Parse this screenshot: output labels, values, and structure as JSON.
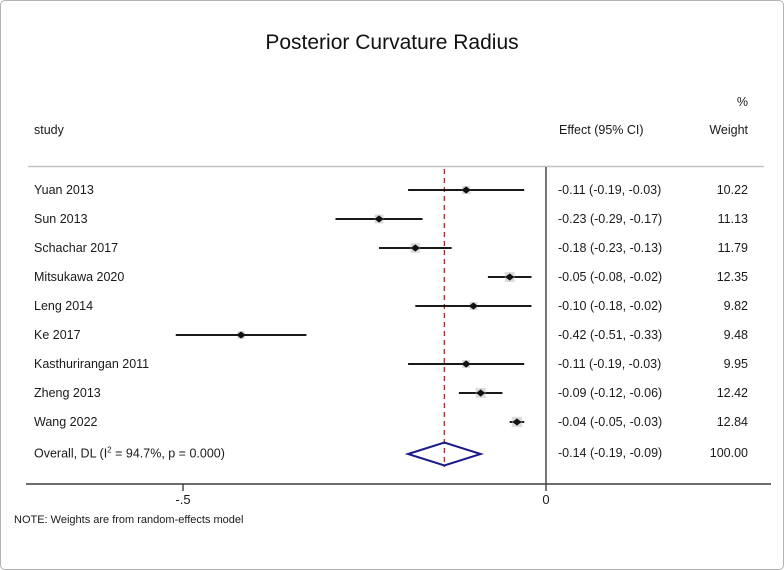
{
  "header": {
    "study_col": "study",
    "effect_col": "Effect (95% CI)",
    "percent_label": "%",
    "weight_col": "Weight"
  },
  "note": "NOTE: Weights are from random-effects model",
  "colors": {
    "text": "#1a1a1a",
    "ci_line": "#1a1a1a",
    "marker": "#111111",
    "weight_square": "#bdbdbd",
    "diamond": "#1a1a8c",
    "dashed_line": "#9e3b3b",
    "axis": "#3d3d3d",
    "separator": "#c3c3c3"
  },
  "chart_data": {
    "type": "forest",
    "title": "Posterior Curvature Radius",
    "xlabel": "",
    "axis": {
      "range": [
        -0.716,
        0.31
      ],
      "ticks": [
        {
          "label": "-.5",
          "value": -0.5
        },
        {
          "label": "0",
          "value": 0
        }
      ],
      "zero_line_value": 0,
      "dashed_line_value": -0.14
    },
    "legend": "none",
    "studies": [
      {
        "label": "Yuan 2013",
        "effect": -0.11,
        "ci_low": -0.19,
        "ci_high": -0.03,
        "effect_text": "-0.11 (-0.19, -0.03)",
        "weight": 10.22,
        "weight_text": "10.22"
      },
      {
        "label": "Sun 2013",
        "effect": -0.23,
        "ci_low": -0.29,
        "ci_high": -0.17,
        "effect_text": "-0.23 (-0.29, -0.17)",
        "weight": 11.13,
        "weight_text": "11.13"
      },
      {
        "label": "Schachar 2017",
        "effect": -0.18,
        "ci_low": -0.23,
        "ci_high": -0.13,
        "effect_text": "-0.18 (-0.23, -0.13)",
        "weight": 11.79,
        "weight_text": "11.79"
      },
      {
        "label": "Mitsukawa 2020",
        "effect": -0.05,
        "ci_low": -0.08,
        "ci_high": -0.02,
        "effect_text": "-0.05 (-0.08, -0.02)",
        "weight": 12.35,
        "weight_text": "12.35"
      },
      {
        "label": "Leng 2014",
        "effect": -0.1,
        "ci_low": -0.18,
        "ci_high": -0.02,
        "effect_text": "-0.10 (-0.18, -0.02)",
        "weight": 9.82,
        "weight_text": "9.82"
      },
      {
        "label": "Ke 2017",
        "effect": -0.42,
        "ci_low": -0.51,
        "ci_high": -0.33,
        "effect_text": "-0.42 (-0.51, -0.33)",
        "weight": 9.48,
        "weight_text": "9.48"
      },
      {
        "label": "Kasthurirangan 2011",
        "effect": -0.11,
        "ci_low": -0.19,
        "ci_high": -0.03,
        "effect_text": "-0.11 (-0.19, -0.03)",
        "weight": 9.95,
        "weight_text": "9.95"
      },
      {
        "label": "Zheng 2013",
        "effect": -0.09,
        "ci_low": -0.12,
        "ci_high": -0.06,
        "effect_text": "-0.09 (-0.12, -0.06)",
        "weight": 12.42,
        "weight_text": "12.42"
      },
      {
        "label": "Wang 2022",
        "effect": -0.04,
        "ci_low": -0.05,
        "ci_high": -0.03,
        "effect_text": "-0.04 (-0.05, -0.03)",
        "weight": 12.84,
        "weight_text": "12.84"
      }
    ],
    "overall": {
      "label_prefix": "Overall, DL (I",
      "label_sup": "2",
      "label_suffix": " = 94.7%, p = 0.000)",
      "effect": -0.14,
      "ci_low": -0.19,
      "ci_high": -0.09,
      "effect_text": "-0.14 (-0.19, -0.09)",
      "weight_text": "100.00"
    }
  }
}
